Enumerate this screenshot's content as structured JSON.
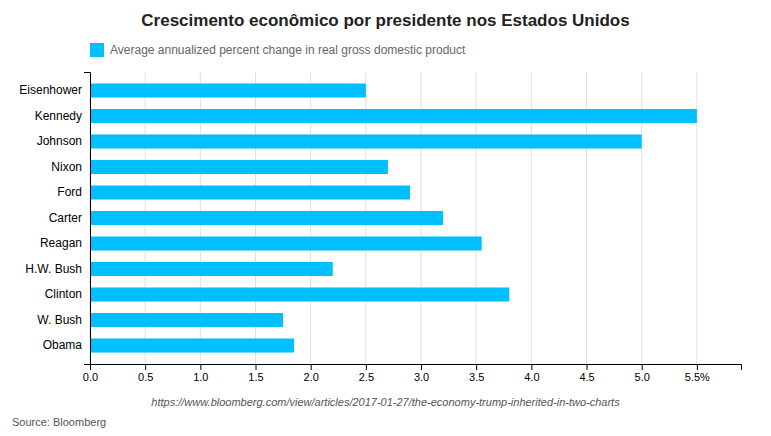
{
  "chart_data": {
    "type": "bar",
    "orientation": "horizontal",
    "title": "Crescimento econômico por presidente nos Estados Unidos",
    "categories": [
      "Eisenhower",
      "Kennedy",
      "Johnson",
      "Nixon",
      "Ford",
      "Carter",
      "Reagan",
      "H.W. Bush",
      "Clinton",
      "W. Bush",
      "Obama"
    ],
    "series": [
      {
        "name": "Average annualized percent change in real gross domestic product",
        "color": "#00BFFF",
        "values": [
          2.5,
          5.5,
          5.0,
          2.7,
          2.9,
          3.2,
          3.55,
          2.2,
          3.8,
          1.75,
          1.85
        ]
      }
    ],
    "xlim": [
      0,
      5.9
    ],
    "xticks": [
      {
        "value": 0.0,
        "label": "0.0"
      },
      0.5,
      {
        "value": 1.0,
        "label": "1.0"
      },
      1.5,
      {
        "value": 2.0,
        "label": "2.0"
      },
      2.5,
      {
        "value": 3.0,
        "label": "3.0"
      },
      3.5,
      {
        "value": 4.0,
        "label": "4.0"
      },
      4.5,
      {
        "value": 5.0,
        "label": "5.0"
      },
      {
        "value": 5.5,
        "label": "5.5%"
      }
    ],
    "grid": true,
    "legend": "top-left",
    "annotations": [
      "https://www.bloomberg.com/view/articles/2017-01-27/the-economy-trump-inherited-in-two-charts",
      "Source: Bloomberg"
    ]
  }
}
